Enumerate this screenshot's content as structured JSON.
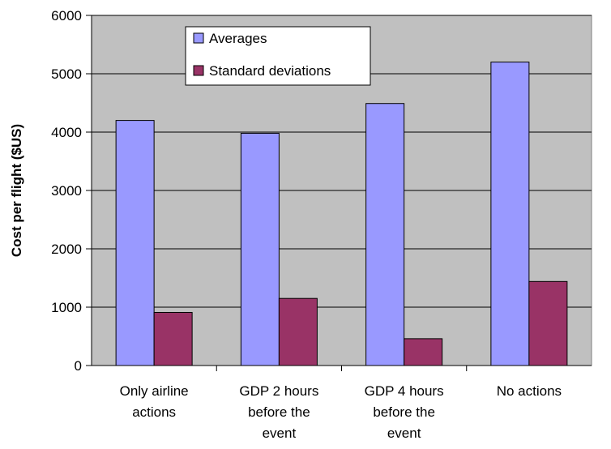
{
  "colors": {
    "plot_background": "#c0c0c0",
    "averages": "#9999ff",
    "standard_deviations": "#993366",
    "grid": "#000000"
  },
  "chart_data": {
    "type": "bar",
    "title": "",
    "xlabel": "",
    "ylabel": "Cost per flight ($US)",
    "ylim": [
      0,
      6000
    ],
    "yticks": [
      0,
      1000,
      2000,
      3000,
      4000,
      5000,
      6000
    ],
    "grid": true,
    "legend_position": "top-left",
    "categories": [
      [
        "Only airline",
        "actions"
      ],
      [
        "GDP 2 hours",
        "before the",
        "event"
      ],
      [
        "GDP 4 hours",
        "before the",
        "event"
      ],
      [
        "No actions"
      ]
    ],
    "series": [
      {
        "name": "Averages",
        "values": [
          4200,
          3980,
          4490,
          5200
        ]
      },
      {
        "name": "Standard deviations",
        "values": [
          910,
          1150,
          460,
          1440
        ]
      }
    ]
  }
}
